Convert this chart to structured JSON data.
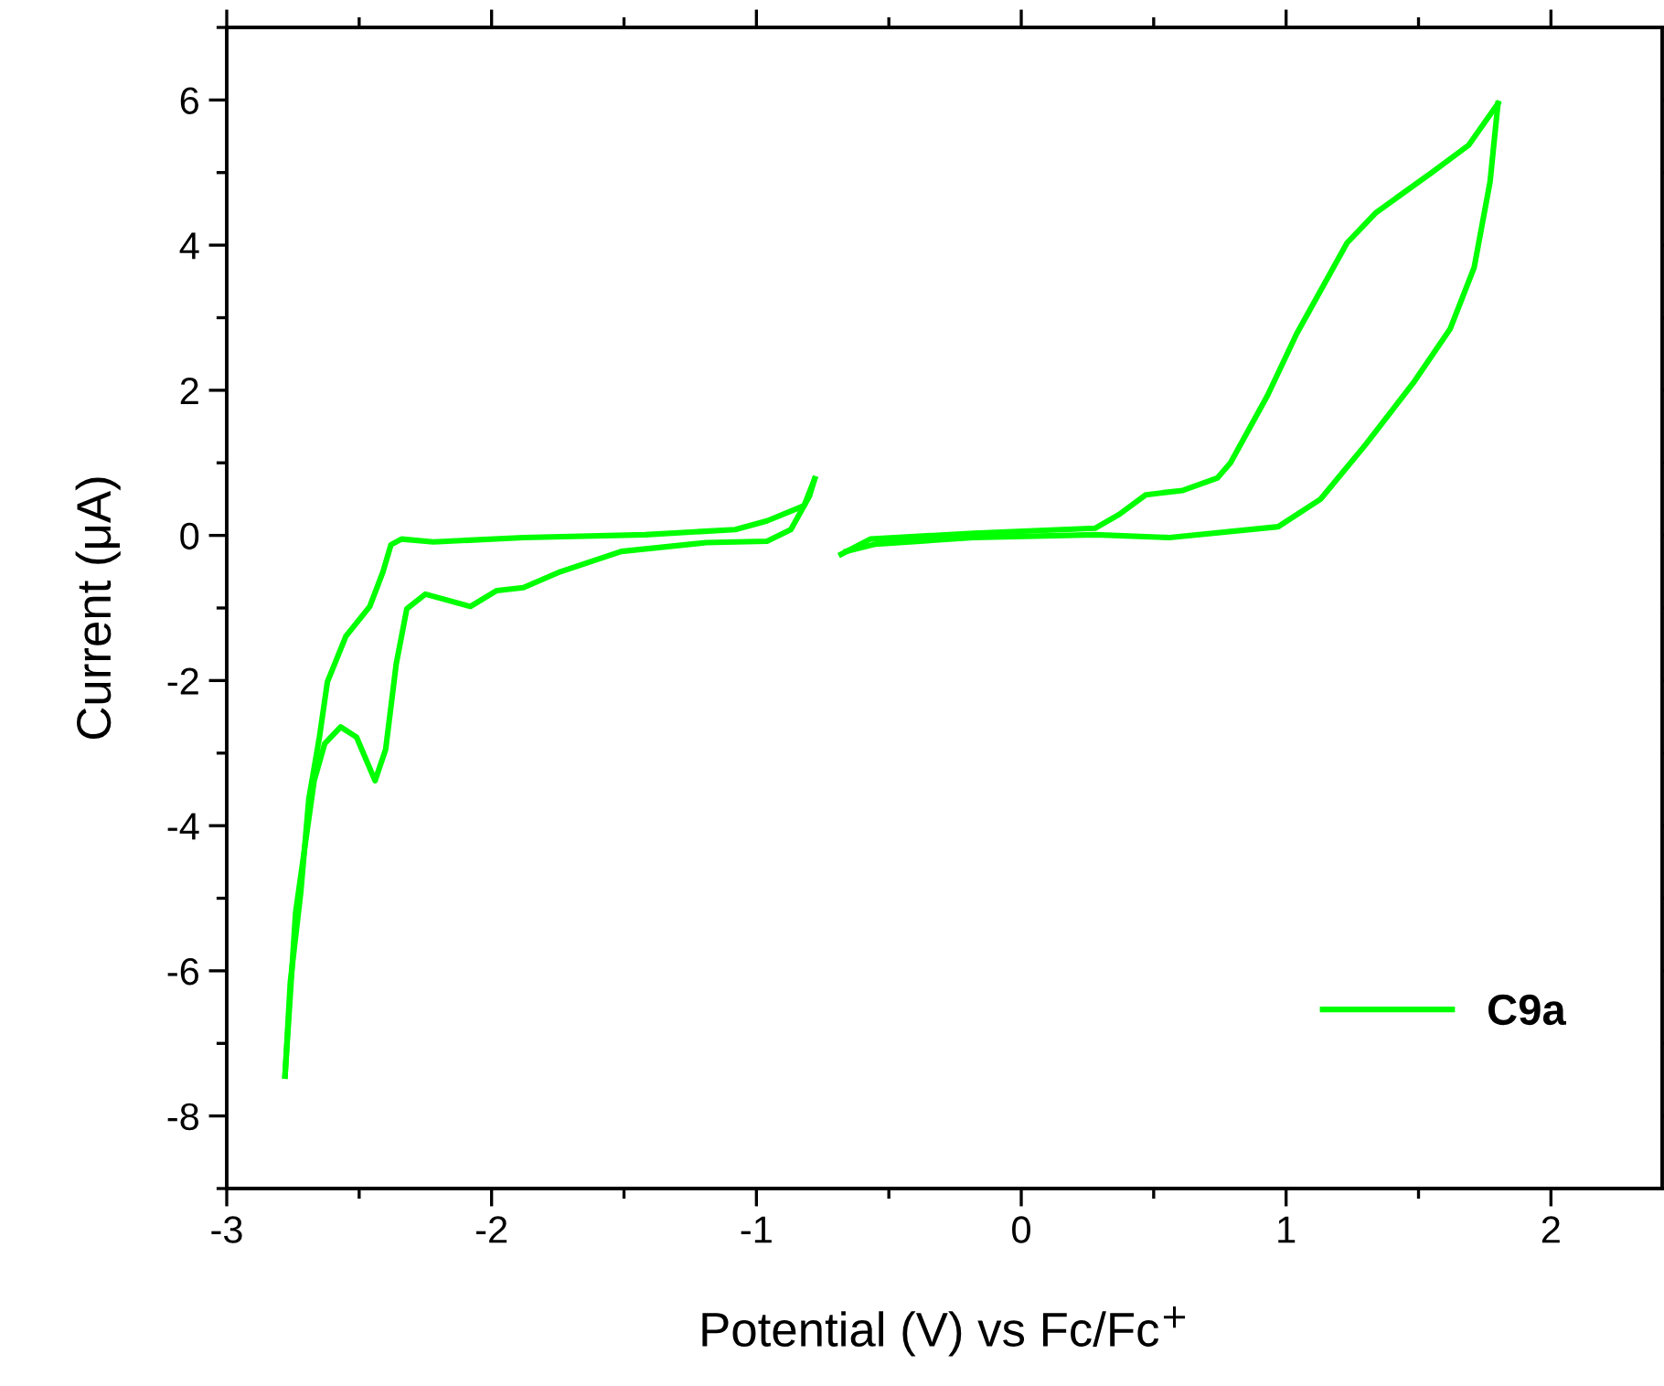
{
  "chart_data": {
    "type": "line",
    "xlabel": "Potential (V) vs Fc/Fc$^{+}$",
    "ylabel": "Current (μA)",
    "xlim": [
      -3,
      2.42
    ],
    "ylim": [
      -9,
      7
    ],
    "xticks": [
      -3,
      -2,
      -1,
      0,
      1,
      2
    ],
    "yticks": [
      -8,
      -6,
      -4,
      -2,
      0,
      2,
      4,
      6
    ],
    "legend": "lower right",
    "grid": false,
    "marker": "none",
    "line_style": "solid",
    "series": [
      {
        "name": "C9a",
        "color": "#00ff00",
        "x": [
          -0.78,
          -0.82,
          -0.96,
          -1.08,
          -1.42,
          -1.88,
          -2.22,
          -2.34,
          -2.38,
          -2.41,
          -2.46,
          -2.55,
          -2.62,
          -2.65,
          -2.69,
          -2.72,
          -2.76,
          -2.78
        ],
        "values": [
          0.78,
          0.41,
          0.2,
          0.08,
          0.01,
          -0.03,
          -0.09,
          -0.05,
          -0.13,
          -0.5,
          -0.98,
          -1.39,
          -2.02,
          -2.78,
          -3.63,
          -4.9,
          -6.16,
          -7.45
        ]
      },
      {
        "color": "#00ff00",
        "x": [
          -2.78,
          -2.74,
          -2.67,
          -2.63,
          -2.57,
          -2.51,
          -2.44,
          -2.4,
          -2.36,
          -2.32,
          -2.25,
          -2.08,
          -1.98,
          -1.88,
          -1.74,
          -1.51,
          -1.19,
          -0.96,
          -0.87,
          -0.8,
          -0.78
        ],
        "values": [
          -7.45,
          -5.2,
          -3.38,
          -2.87,
          -2.64,
          -2.78,
          -3.38,
          -2.95,
          -1.77,
          -1.01,
          -0.81,
          -0.98,
          -0.76,
          -0.72,
          -0.5,
          -0.22,
          -0.1,
          -0.08,
          0.08,
          0.54,
          0.78
        ]
      },
      {
        "color": "#00ff00",
        "x": [
          -0.68,
          -0.57,
          -0.18,
          0.28,
          0.37,
          0.47,
          0.61,
          0.74,
          0.79,
          0.93,
          1.04,
          1.23,
          1.34,
          1.55,
          1.69,
          1.8
        ],
        "values": [
          -0.26,
          -0.05,
          0.03,
          0.1,
          0.29,
          0.56,
          0.62,
          0.79,
          1.0,
          1.93,
          2.78,
          4.03,
          4.45,
          5.0,
          5.38,
          5.95
        ]
      },
      {
        "color": "#00ff00",
        "x": [
          1.8,
          1.77,
          1.71,
          1.62,
          1.48,
          1.3,
          1.13,
          0.97,
          0.56,
          0.28,
          -0.18,
          -0.55,
          -0.66
        ],
        "values": [
          5.95,
          4.87,
          3.69,
          2.85,
          2.1,
          1.25,
          0.5,
          0.12,
          -0.03,
          0.01,
          -0.03,
          -0.12,
          -0.22
        ]
      }
    ]
  }
}
